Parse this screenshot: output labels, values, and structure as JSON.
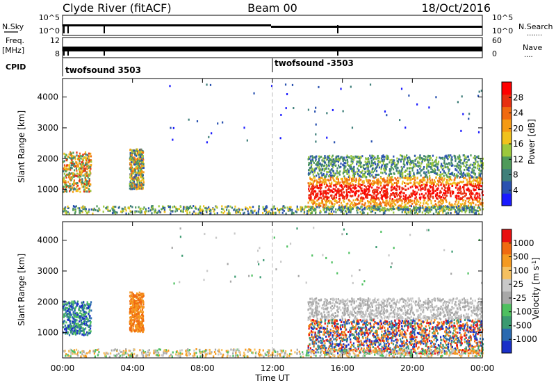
{
  "header": {
    "station": "Clyde River (fitACF)",
    "beam": "Beam 00",
    "date": "18/Oct/2016"
  },
  "top_panels": {
    "nsky_label": "N.Sky",
    "nsky_ticks": [
      "10^5",
      "10^0"
    ],
    "nsearch_label": "N.Search",
    "nsearch_ticks": [
      "10^5",
      "10^0"
    ],
    "freq_label_1": "Freq.",
    "freq_label_2": "[MHz]",
    "freq_ticks": [
      "12",
      "8"
    ],
    "nave_label": "Nave",
    "nave_ticks": [
      "60",
      "0"
    ],
    "cpid_label": "CPID",
    "cpid_segments": [
      "twofsound 3503",
      "twofsound -3503"
    ]
  },
  "time_axis": {
    "label": "Time UT",
    "ticks": [
      "00:00",
      "04:00",
      "08:00",
      "12:00",
      "16:00",
      "20:00",
      "00:00"
    ]
  },
  "colors": {
    "power": [
      "#1a1aff",
      "#2a52b0",
      "#3f7f7a",
      "#4f9a5a",
      "#9cc83c",
      "#f0c21c",
      "#f59a14",
      "#f06a10",
      "#e83010",
      "#ff0000"
    ],
    "velocity": [
      "#e81010",
      "#f06a10",
      "#f59a20",
      "#f5c060",
      "#c8c8c8",
      "#a8a8a8",
      "#4ec060",
      "#3a9a70",
      "#2a6ab0",
      "#1a30c8"
    ]
  },
  "chart_data": [
    {
      "type": "heatmap",
      "title": "",
      "xlabel": "Time UT",
      "ylabel": "Slant Range [km]",
      "xlim": [
        0,
        24
      ],
      "ylim": [
        180,
        4600
      ],
      "yticks": [
        "1000",
        "2000",
        "3000",
        "4000"
      ],
      "colorbar_label": "Power [dB]",
      "colorbar_ticks": [
        "4",
        "8",
        "12",
        "16",
        "20",
        "24",
        "28"
      ],
      "regions": [
        {
          "t0": 0.0,
          "t1": 1.6,
          "r0": 900,
          "r1": 2200,
          "level": "mixed-high"
        },
        {
          "t0": 3.8,
          "t1": 4.6,
          "r0": 1000,
          "r1": 2300,
          "level": "mixed"
        },
        {
          "t0": 14.0,
          "t1": 24.0,
          "r0": 300,
          "r1": 2100,
          "level": "high"
        }
      ]
    },
    {
      "type": "heatmap",
      "title": "",
      "xlabel": "Time UT",
      "ylabel": "Slant Range [km]",
      "xlim": [
        0,
        24
      ],
      "ylim": [
        180,
        4600
      ],
      "yticks": [
        "1000",
        "2000",
        "3000",
        "4000"
      ],
      "colorbar_label": "Velocity [m s-1]",
      "colorbar_ticks": [
        "1000",
        "500",
        "100",
        "25",
        "-25",
        "-100",
        "-500",
        "-1000"
      ],
      "regions": [
        {
          "t0": 0.0,
          "t1": 1.6,
          "r0": 900,
          "r1": 2000,
          "level": "toward"
        },
        {
          "t0": 3.8,
          "t1": 4.6,
          "r0": 1000,
          "r1": 2300,
          "level": "away"
        },
        {
          "t0": 14.0,
          "t1": 24.0,
          "r0": 300,
          "r1": 2100,
          "level": "mixed"
        }
      ]
    }
  ]
}
